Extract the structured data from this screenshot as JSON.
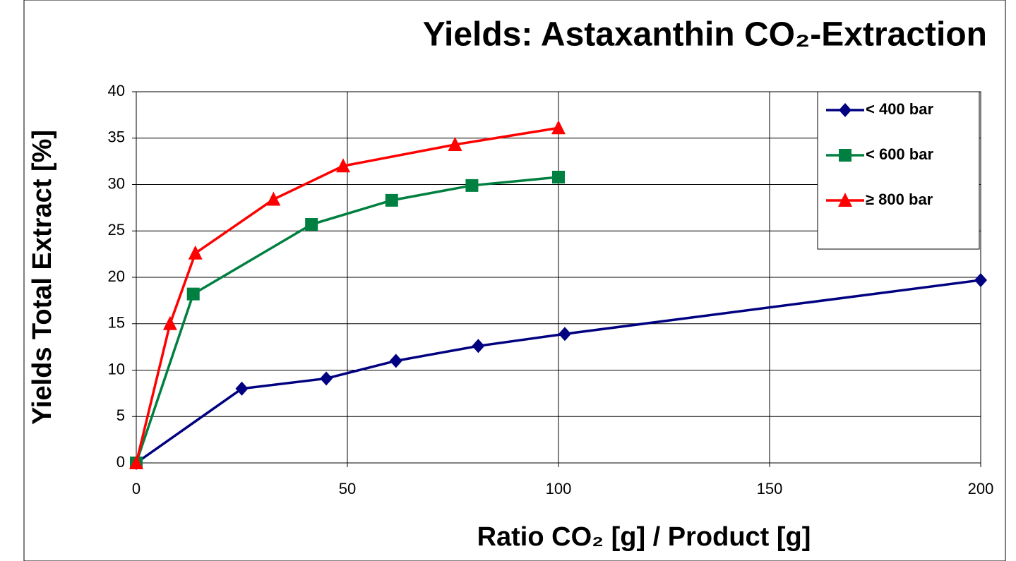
{
  "chart_data": {
    "type": "line",
    "title": "Yields: Astaxanthin CO₂-Extraction",
    "x_label": "Ratio CO₂ [g] / Product [g]",
    "y_label": "Yields Total Extract [%]",
    "xlim": [
      0,
      200
    ],
    "xticks": [
      0,
      50,
      100,
      150,
      200
    ],
    "ylim": [
      0,
      40
    ],
    "yticks": [
      0,
      5,
      10,
      15,
      20,
      25,
      30,
      35,
      40
    ],
    "grid": true,
    "legend": "upper right",
    "series": [
      {
        "name": "< 400 bar",
        "color": "#000080",
        "marker": "diamond",
        "x": [
          0,
          25,
          45,
          61.5,
          81,
          101.5,
          200
        ],
        "values": [
          0,
          8.0,
          9.1,
          11.0,
          12.6,
          13.9,
          19.7
        ]
      },
      {
        "name": "< 600 bar",
        "color": "#008040",
        "marker": "square",
        "x": [
          0,
          13.5,
          41.5,
          60.5,
          79.5,
          100
        ],
        "values": [
          0,
          18.2,
          25.7,
          28.3,
          29.9,
          30.8
        ]
      },
      {
        "name": "≥ 800 bar",
        "color": "#ff0000",
        "marker": "triangle",
        "x": [
          0,
          8,
          14,
          32.5,
          49,
          75.5,
          100
        ],
        "values": [
          0,
          15.0,
          22.6,
          28.4,
          32.0,
          34.3,
          36.1
        ]
      }
    ]
  }
}
